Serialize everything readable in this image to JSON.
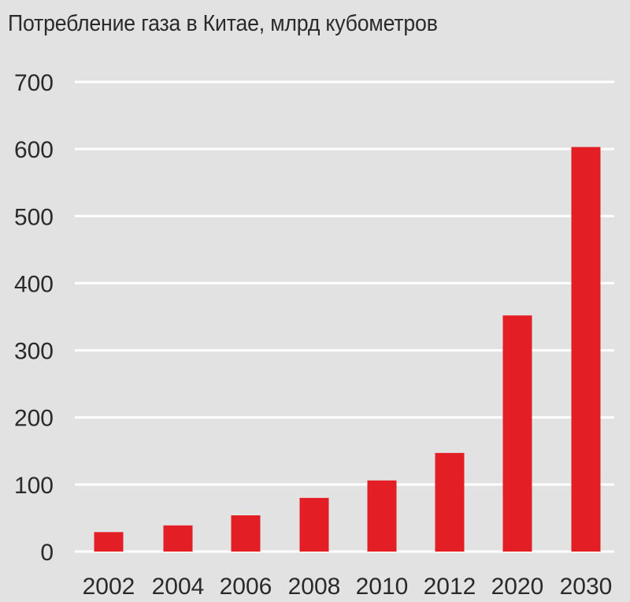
{
  "chart_data": {
    "type": "bar",
    "title": "Потребление газа в Китае, млрд кубометров",
    "categories": [
      "2002",
      "2004",
      "2006",
      "2008",
      "2010",
      "2012",
      "2020",
      "2030"
    ],
    "values": [
      29,
      39,
      54,
      80,
      106,
      147,
      352,
      603
    ],
    "ylim": [
      0,
      700
    ],
    "yticks": [
      0,
      100,
      200,
      300,
      400,
      500,
      600,
      700
    ],
    "grid": true,
    "xlabel": "",
    "ylabel": "",
    "colors": {
      "bar": "#e31e24",
      "grid": "#ffffff",
      "background": "#e2e2e2"
    }
  }
}
